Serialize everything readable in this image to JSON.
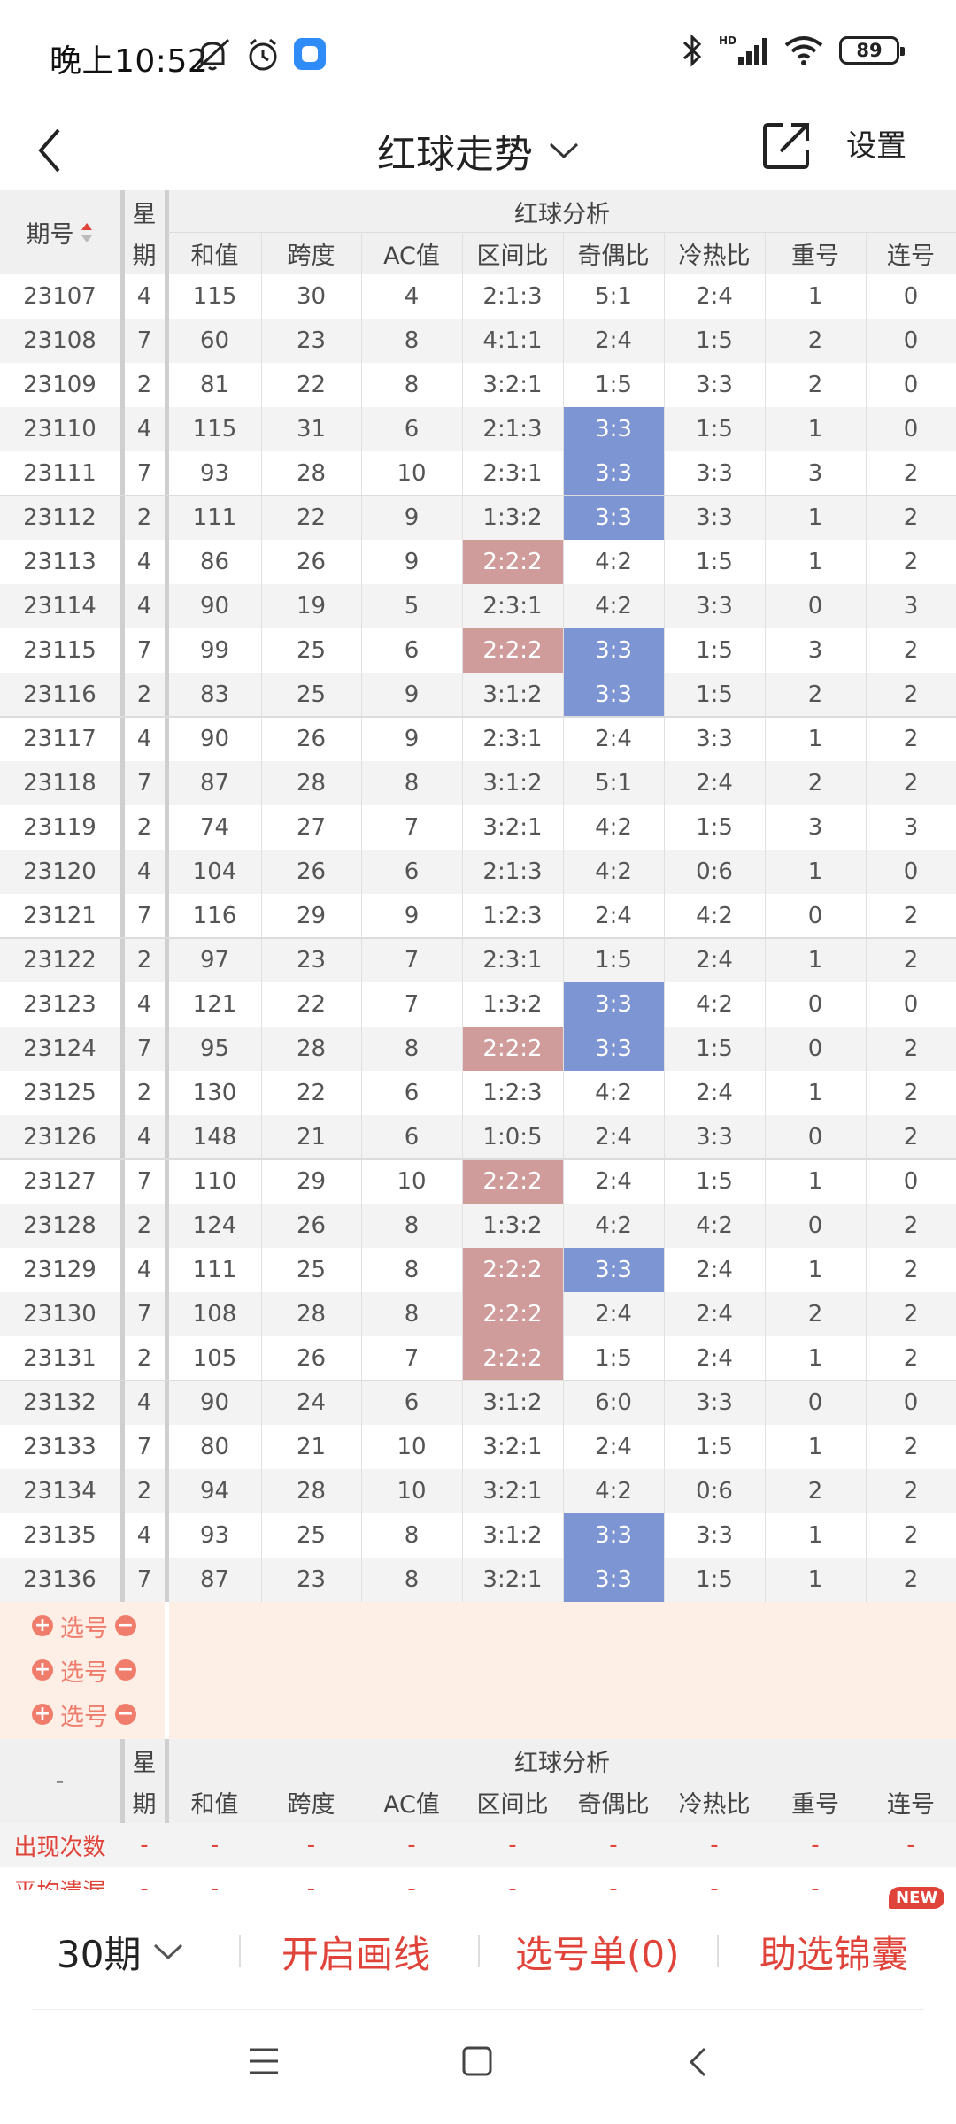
{
  "status_bar": {
    "time": "晚上10:52",
    "battery": "89"
  },
  "nav": {
    "title": "红球走势",
    "settings": "设置"
  },
  "header": {
    "issue": "期号",
    "week1": "星",
    "week2": "期",
    "group": "红球分析",
    "columns": [
      "和值",
      "跨度",
      "AC值",
      "区间比",
      "奇偶比",
      "冷热比",
      "重号",
      "连号"
    ]
  },
  "rows": [
    [
      "23107",
      "4",
      "115",
      "30",
      "4",
      "2:1:3",
      "5:1",
      "2:4",
      "1",
      "0"
    ],
    [
      "23108",
      "7",
      "60",
      "23",
      "8",
      "4:1:1",
      "2:4",
      "1:5",
      "2",
      "0"
    ],
    [
      "23109",
      "2",
      "81",
      "22",
      "8",
      "3:2:1",
      "1:5",
      "3:3",
      "2",
      "0"
    ],
    [
      "23110",
      "4",
      "115",
      "31",
      "6",
      "2:1:3",
      "3:3",
      "1:5",
      "1",
      "0"
    ],
    [
      "23111",
      "7",
      "93",
      "28",
      "10",
      "2:3:1",
      "3:3",
      "3:3",
      "3",
      "2"
    ],
    [
      "23112",
      "2",
      "111",
      "22",
      "9",
      "1:3:2",
      "3:3",
      "3:3",
      "1",
      "2"
    ],
    [
      "23113",
      "4",
      "86",
      "26",
      "9",
      "2:2:2",
      "4:2",
      "1:5",
      "1",
      "2"
    ],
    [
      "23114",
      "4",
      "90",
      "19",
      "5",
      "2:3:1",
      "4:2",
      "3:3",
      "0",
      "3"
    ],
    [
      "23115",
      "7",
      "99",
      "25",
      "6",
      "2:2:2",
      "3:3",
      "1:5",
      "3",
      "2"
    ],
    [
      "23116",
      "2",
      "83",
      "25",
      "9",
      "3:1:2",
      "3:3",
      "1:5",
      "2",
      "2"
    ],
    [
      "23117",
      "4",
      "90",
      "26",
      "9",
      "2:3:1",
      "2:4",
      "3:3",
      "1",
      "2"
    ],
    [
      "23118",
      "7",
      "87",
      "28",
      "8",
      "3:1:2",
      "5:1",
      "2:4",
      "2",
      "2"
    ],
    [
      "23119",
      "2",
      "74",
      "27",
      "7",
      "3:2:1",
      "4:2",
      "1:5",
      "3",
      "3"
    ],
    [
      "23120",
      "4",
      "104",
      "26",
      "6",
      "2:1:3",
      "4:2",
      "0:6",
      "1",
      "0"
    ],
    [
      "23121",
      "7",
      "116",
      "29",
      "9",
      "1:2:3",
      "2:4",
      "4:2",
      "0",
      "2"
    ],
    [
      "23122",
      "2",
      "97",
      "23",
      "7",
      "2:3:1",
      "1:5",
      "2:4",
      "1",
      "2"
    ],
    [
      "23123",
      "4",
      "121",
      "22",
      "7",
      "1:3:2",
      "3:3",
      "4:2",
      "0",
      "0"
    ],
    [
      "23124",
      "7",
      "95",
      "28",
      "8",
      "2:2:2",
      "3:3",
      "1:5",
      "0",
      "2"
    ],
    [
      "23125",
      "2",
      "130",
      "22",
      "6",
      "1:2:3",
      "4:2",
      "2:4",
      "1",
      "2"
    ],
    [
      "23126",
      "4",
      "148",
      "21",
      "6",
      "1:0:5",
      "2:4",
      "3:3",
      "0",
      "2"
    ],
    [
      "23127",
      "7",
      "110",
      "29",
      "10",
      "2:2:2",
      "2:4",
      "1:5",
      "1",
      "0"
    ],
    [
      "23128",
      "2",
      "124",
      "26",
      "8",
      "1:3:2",
      "4:2",
      "4:2",
      "0",
      "2"
    ],
    [
      "23129",
      "4",
      "111",
      "25",
      "8",
      "2:2:2",
      "3:3",
      "2:4",
      "1",
      "2"
    ],
    [
      "23130",
      "7",
      "108",
      "28",
      "8",
      "2:2:2",
      "2:4",
      "2:4",
      "2",
      "2"
    ],
    [
      "23131",
      "2",
      "105",
      "26",
      "7",
      "2:2:2",
      "1:5",
      "2:4",
      "1",
      "2"
    ],
    [
      "23132",
      "4",
      "90",
      "24",
      "6",
      "3:1:2",
      "6:0",
      "3:3",
      "0",
      "0"
    ],
    [
      "23133",
      "7",
      "80",
      "21",
      "10",
      "3:2:1",
      "2:4",
      "1:5",
      "1",
      "2"
    ],
    [
      "23134",
      "2",
      "94",
      "28",
      "10",
      "3:2:1",
      "4:2",
      "0:6",
      "2",
      "2"
    ],
    [
      "23135",
      "4",
      "93",
      "25",
      "8",
      "3:1:2",
      "3:3",
      "3:3",
      "1",
      "2"
    ],
    [
      "23136",
      "7",
      "87",
      "23",
      "8",
      "3:2:1",
      "3:3",
      "1:5",
      "1",
      "2"
    ]
  ],
  "select_rows": [
    "选号",
    "选号",
    "选号"
  ],
  "footer_header": {
    "issue": "-",
    "week1": "星",
    "week2": "期",
    "group": "红球分析"
  },
  "stats": [
    {
      "label": "出现次数",
      "values": [
        "-",
        "-",
        "-",
        "-",
        "-",
        "-",
        "-",
        "-",
        "-"
      ]
    },
    {
      "label": "平均遗漏",
      "values": [
        "-",
        "-",
        "-",
        "-",
        "-",
        "-",
        "-",
        "-",
        "-"
      ]
    }
  ],
  "toolbar": {
    "periods": "30期",
    "draw": "开启画线",
    "picks": "选号单(0)",
    "helper": "助选锦囊",
    "badge": "NEW"
  },
  "colors": {
    "accent": "#e0433a",
    "blue_cell": "#7e95d3",
    "red_cell": "#cf9b9b",
    "select_bg": "#fdeee6"
  }
}
